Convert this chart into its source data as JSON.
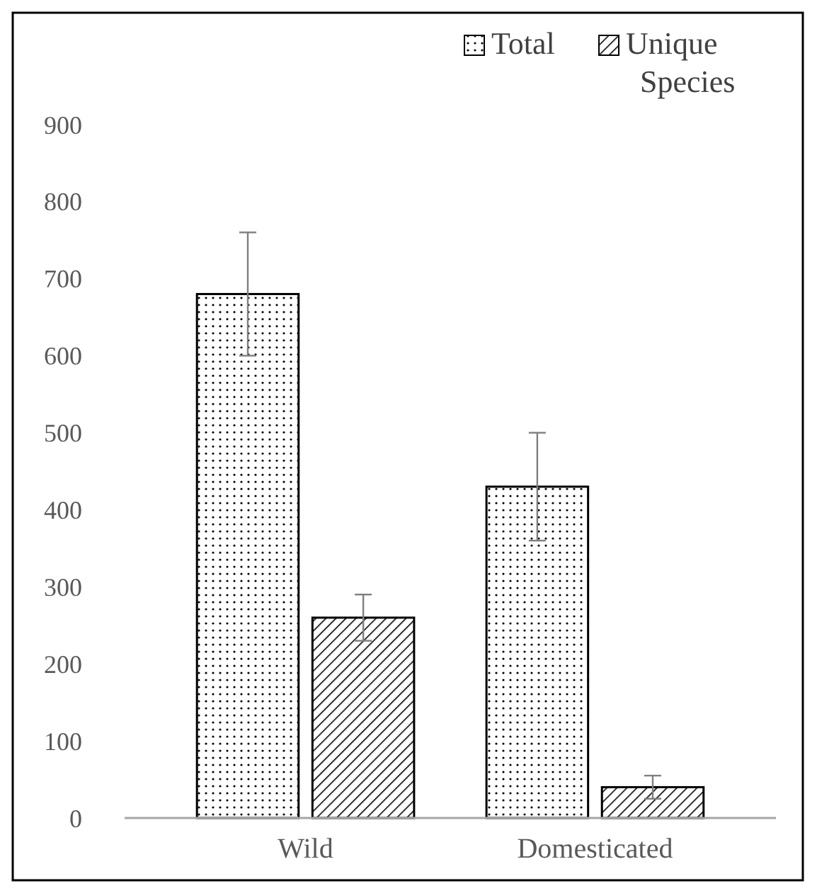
{
  "chart_data": {
    "type": "bar",
    "categories": [
      "Wild",
      "Domesticated"
    ],
    "series": [
      {
        "name": "Total",
        "color": "#000000",
        "values": [
          680,
          430
        ],
        "errors": [
          80,
          70
        ]
      },
      {
        "name": "Unique Species",
        "color": "#000000",
        "values": [
          260,
          40
        ],
        "errors": [
          30,
          15
        ]
      }
    ],
    "ylim": [
      0,
      900
    ],
    "yticks": [
      0,
      100,
      200,
      300,
      400,
      500,
      600,
      700,
      800,
      900
    ],
    "grid": false,
    "legend": "top right"
  }
}
